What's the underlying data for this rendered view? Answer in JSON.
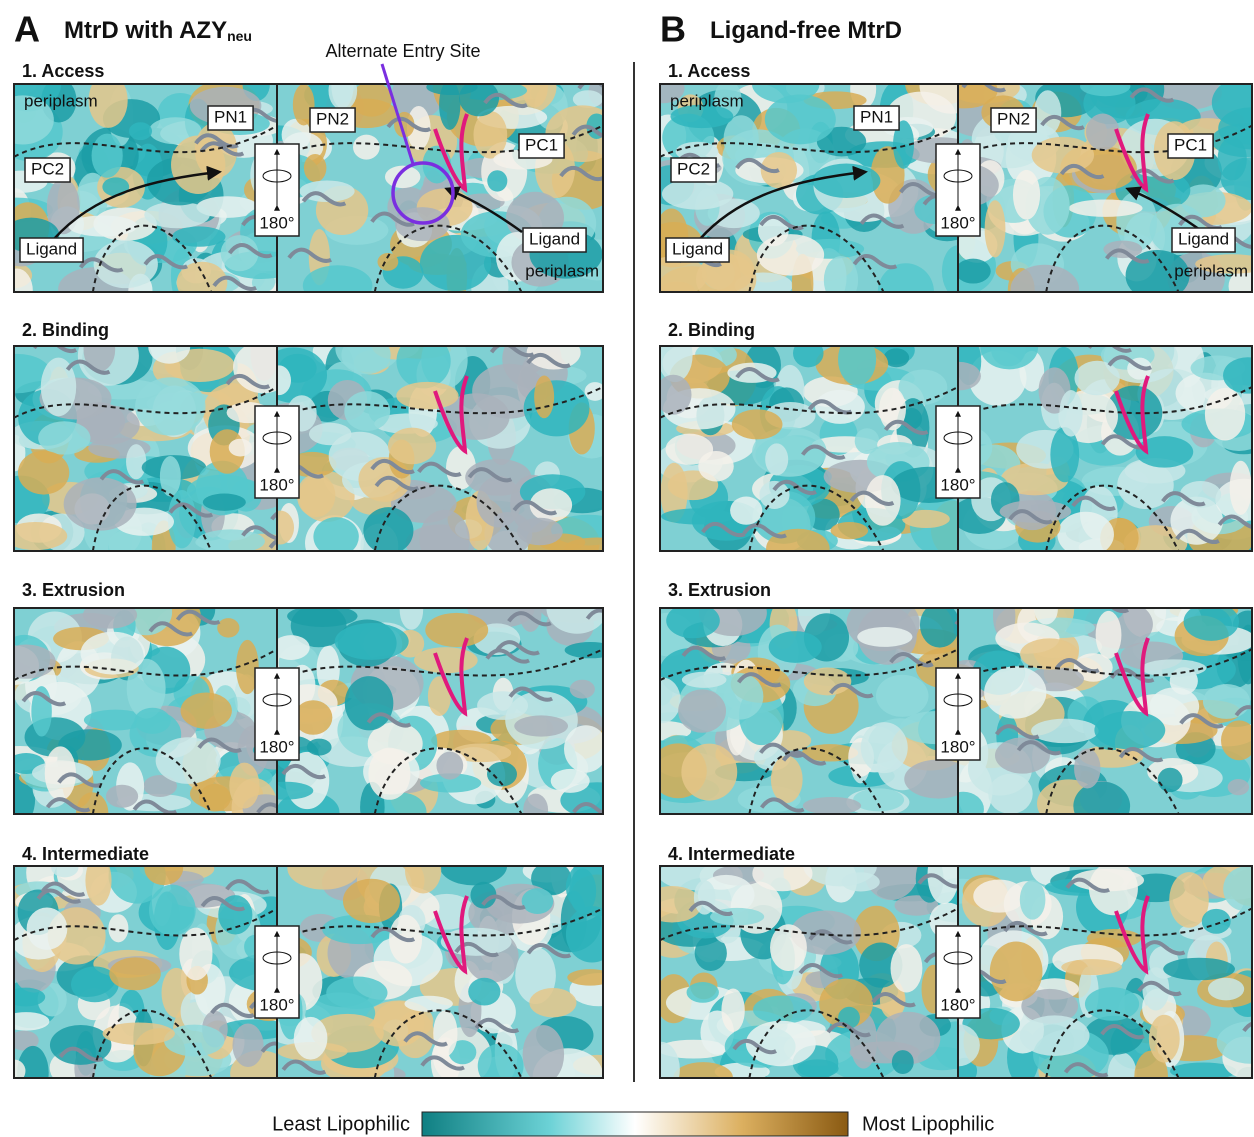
{
  "panels": [
    {
      "letter": "A",
      "title": "MtrD with AZY",
      "title_sub": "neu",
      "rows": [
        {
          "label": "1. Access",
          "rotation": "180°",
          "left_labels": {
            "region": "periplasm",
            "tags": [
              "PN1",
              "PC2",
              "Ligand"
            ]
          },
          "right_labels": {
            "tags": [
              "PN2",
              "PC1",
              "Ligand"
            ],
            "region": "periplasm"
          }
        },
        {
          "label": "2. Binding",
          "rotation": "180°"
        },
        {
          "label": "3. Extrusion",
          "rotation": "180°"
        },
        {
          "label": "4. Intermediate",
          "rotation": "180°"
        }
      ],
      "callout": "Alternate Entry Site"
    },
    {
      "letter": "B",
      "title": "Ligand-free MtrD",
      "rows": [
        {
          "label": "1. Access",
          "rotation": "180°",
          "left_labels": {
            "region": "periplasm",
            "tags": [
              "PN1",
              "PC2",
              "Ligand"
            ]
          },
          "right_labels": {
            "tags": [
              "PN2",
              "PC1",
              "Ligand"
            ],
            "region": "periplasm"
          }
        },
        {
          "label": "2. Binding",
          "rotation": "180°"
        },
        {
          "label": "3. Extrusion",
          "rotation": "180°"
        },
        {
          "label": "4. Intermediate",
          "rotation": "180°"
        }
      ]
    }
  ],
  "legend": {
    "min_label": "Least Lipophilic",
    "max_label": "Most Lipophilic"
  }
}
